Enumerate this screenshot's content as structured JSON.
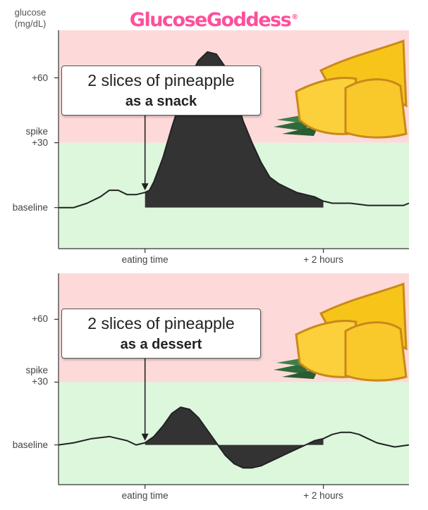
{
  "brand": {
    "name": "GlucoseGoddess",
    "mark": "®"
  },
  "y_unit_label": "glucose\n(mg/dL)",
  "colors": {
    "brand": "#ff4f9b",
    "danger_zone": "#fddad9",
    "safe_zone": "#dcf7dc",
    "curve": "#222222",
    "fill": "#333333",
    "fruit": "#f7c51a",
    "fruit_rind": "#c9891a",
    "leaves": "#2f6b3a"
  },
  "chart_data": [
    {
      "type": "area",
      "title": "",
      "annotation": {
        "line1": "2 slices of pineapple",
        "line2": "as a snack"
      },
      "ytick_labels": [
        "+60",
        "spike\n+30",
        "baseline"
      ],
      "yticks": [
        60,
        30,
        0
      ],
      "ylim": [
        -19,
        82
      ],
      "spike_threshold": 30,
      "xtick_labels": [
        "eating time",
        "+ 2 hours"
      ],
      "xticks": [
        0,
        2
      ],
      "xlim": [
        -0.97,
        2.96
      ],
      "fill_end": 2,
      "x": [
        -0.97,
        -0.8,
        -0.65,
        -0.5,
        -0.4,
        -0.3,
        -0.2,
        -0.1,
        0.0,
        0.05,
        0.1,
        0.2,
        0.3,
        0.4,
        0.5,
        0.6,
        0.7,
        0.8,
        0.9,
        1.0,
        1.1,
        1.2,
        1.3,
        1.4,
        1.5,
        1.6,
        1.7,
        1.8,
        1.9,
        2.0,
        2.1,
        2.3,
        2.5,
        2.7,
        2.9,
        2.96
      ],
      "y": [
        0,
        0,
        2,
        5,
        8,
        8,
        6,
        6,
        7,
        8,
        12,
        23,
        37,
        50,
        60,
        68,
        72,
        71,
        65,
        54,
        40,
        30,
        21,
        14,
        11,
        9,
        7,
        6,
        5,
        3,
        2,
        2,
        1,
        1,
        1,
        2
      ]
    },
    {
      "type": "area",
      "title": "",
      "annotation": {
        "line1": "2 slices of pineapple",
        "line2": "as a dessert"
      },
      "ytick_labels": [
        "+60",
        "spike\n+30",
        "baseline"
      ],
      "yticks": [
        60,
        30,
        0
      ],
      "ylim": [
        -19,
        82
      ],
      "spike_threshold": 30,
      "xtick_labels": [
        "eating time",
        "+ 2 hours"
      ],
      "xticks": [
        0,
        2
      ],
      "xlim": [
        -0.97,
        2.96
      ],
      "fill_end": 2,
      "x": [
        -0.97,
        -0.8,
        -0.6,
        -0.4,
        -0.2,
        -0.1,
        0.0,
        0.1,
        0.2,
        0.3,
        0.4,
        0.5,
        0.6,
        0.7,
        0.8,
        0.9,
        1.0,
        1.1,
        1.2,
        1.3,
        1.4,
        1.5,
        1.6,
        1.7,
        1.8,
        1.9,
        2.0,
        2.1,
        2.2,
        2.3,
        2.4,
        2.5,
        2.6,
        2.7,
        2.8,
        2.96
      ],
      "y": [
        0,
        1,
        3,
        4,
        2,
        0,
        1,
        4,
        9,
        15,
        18,
        17,
        13,
        7,
        1,
        -5,
        -9,
        -11,
        -11,
        -10,
        -8,
        -6,
        -4,
        -2,
        0,
        2,
        3,
        5,
        6,
        6,
        5,
        3,
        1,
        0,
        -1,
        0
      ]
    }
  ]
}
